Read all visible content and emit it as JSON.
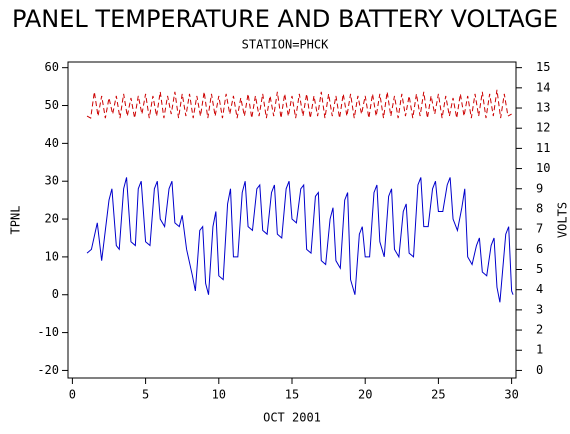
{
  "chart_data": {
    "type": "line",
    "title": "PANEL TEMPERATURE AND BATTERY VOLTAGE",
    "subtitle": "STATION=PHCK",
    "x_label": "OCT 2001",
    "y_label": "TPNL",
    "y2_label": "VOLTS",
    "xlim": [
      -0.3,
      30.3
    ],
    "xticks": [
      0,
      5,
      10,
      15,
      20,
      25,
      30
    ],
    "ylim": [
      -22,
      61.5
    ],
    "yticks": [
      -20,
      -10,
      0,
      10,
      20,
      30,
      40,
      50,
      60
    ],
    "y2lim": [
      -0.375,
      15.28
    ],
    "y2ticks": [
      0,
      1,
      2,
      3,
      4,
      5,
      6,
      7,
      8,
      9,
      10,
      11,
      12,
      13,
      14,
      15
    ],
    "series": [
      {
        "color": "#0000cc",
        "axis": "y",
        "dashed": false,
        "x": [
          1.0,
          1.3,
          1.7,
          2.0,
          2.5,
          2.7,
          3.0,
          3.2,
          3.5,
          3.7,
          4.0,
          4.3,
          4.5,
          4.7,
          5.0,
          5.3,
          5.6,
          5.8,
          6.0,
          6.3,
          6.6,
          6.8,
          7.0,
          7.3,
          7.5,
          7.8,
          8.2,
          8.4,
          8.7,
          8.9,
          9.1,
          9.3,
          9.6,
          9.8,
          10.0,
          10.3,
          10.6,
          10.8,
          11.0,
          11.3,
          11.6,
          11.8,
          12.0,
          12.3,
          12.6,
          12.8,
          13.0,
          13.3,
          13.6,
          13.8,
          14.0,
          14.3,
          14.6,
          14.8,
          15.0,
          15.3,
          15.6,
          15.8,
          16.0,
          16.3,
          16.6,
          16.8,
          17.0,
          17.3,
          17.6,
          17.8,
          18.0,
          18.3,
          18.6,
          18.8,
          19.0,
          19.3,
          19.6,
          19.8,
          20.0,
          20.3,
          20.6,
          20.8,
          21.0,
          21.3,
          21.6,
          21.8,
          22.0,
          22.3,
          22.6,
          22.8,
          23.0,
          23.3,
          23.6,
          23.8,
          24.0,
          24.3,
          24.6,
          24.8,
          25.0,
          25.3,
          25.6,
          25.8,
          26.0,
          26.3,
          26.6,
          26.8,
          27.0,
          27.3,
          27.6,
          27.8,
          28.0,
          28.3,
          28.6,
          28.8,
          29.0,
          29.2,
          29.6,
          29.8,
          30.0,
          30.1
        ],
        "values": [
          11,
          12,
          19,
          9,
          25,
          28,
          13,
          12,
          28,
          31,
          14,
          13,
          28,
          30,
          14,
          13,
          28,
          30,
          20,
          18,
          28,
          30,
          19,
          18,
          21,
          12,
          5,
          1,
          17,
          18,
          3,
          0,
          18,
          22,
          5,
          4,
          24,
          28,
          10,
          10,
          27,
          30,
          18,
          17,
          28,
          29,
          17,
          16,
          27,
          29,
          16,
          15,
          28,
          30,
          20,
          19,
          28,
          29,
          12,
          11,
          26,
          27,
          9,
          8,
          20,
          23,
          9,
          7,
          25,
          27,
          4,
          0,
          16,
          18,
          10,
          10,
          27,
          29,
          14,
          10,
          26,
          28,
          12,
          10,
          22,
          24,
          11,
          10,
          29,
          31,
          18,
          18,
          28,
          30,
          22,
          22,
          29,
          31,
          20,
          17,
          23,
          28,
          10,
          8,
          13,
          15,
          6,
          5,
          13,
          15,
          2,
          -2,
          16,
          18,
          1,
          0
        ]
      },
      {
        "color": "#cc0000",
        "axis": "y2",
        "dashed": true,
        "x": [
          1.0,
          1.25,
          1.5,
          1.75,
          2.0,
          2.25,
          2.5,
          2.75,
          3.0,
          3.25,
          3.5,
          3.75,
          4.0,
          4.25,
          4.5,
          4.75,
          5.0,
          5.25,
          5.5,
          5.75,
          6.0,
          6.25,
          6.5,
          6.75,
          7.0,
          7.25,
          7.5,
          7.75,
          8.0,
          8.25,
          8.5,
          8.75,
          9.0,
          9.25,
          9.5,
          9.75,
          10.0,
          10.25,
          10.5,
          10.75,
          11.0,
          11.25,
          11.5,
          11.75,
          12.0,
          12.25,
          12.5,
          12.75,
          13.0,
          13.25,
          13.5,
          13.75,
          14.0,
          14.25,
          14.5,
          14.75,
          15.0,
          15.25,
          15.5,
          15.75,
          16.0,
          16.25,
          16.5,
          16.75,
          17.0,
          17.25,
          17.5,
          17.75,
          18.0,
          18.25,
          18.5,
          18.75,
          19.0,
          19.25,
          19.5,
          19.75,
          20.0,
          20.25,
          20.5,
          20.75,
          21.0,
          21.25,
          21.5,
          21.75,
          22.0,
          22.25,
          22.5,
          22.75,
          23.0,
          23.25,
          23.5,
          23.75,
          24.0,
          24.25,
          24.5,
          24.75,
          25.0,
          25.25,
          25.5,
          25.75,
          26.0,
          26.25,
          26.5,
          26.75,
          27.0,
          27.25,
          27.5,
          27.75,
          28.0,
          28.25,
          28.5,
          28.75,
          29.0,
          29.25,
          29.5,
          29.75,
          30.0
        ],
        "values": [
          12.6,
          12.5,
          13.8,
          12.6,
          13.6,
          12.5,
          13.5,
          12.7,
          13.6,
          12.5,
          13.7,
          12.6,
          13.5,
          12.5,
          13.6,
          12.7,
          13.7,
          12.5,
          13.6,
          12.6,
          13.8,
          12.5,
          13.6,
          12.7,
          13.8,
          12.5,
          13.7,
          12.6,
          13.7,
          12.5,
          13.6,
          12.6,
          13.8,
          12.5,
          13.7,
          12.6,
          13.6,
          12.5,
          13.7,
          12.7,
          13.6,
          12.5,
          13.5,
          12.6,
          13.7,
          12.5,
          13.6,
          12.6,
          13.7,
          12.5,
          13.6,
          12.6,
          13.8,
          12.5,
          13.7,
          12.6,
          13.6,
          12.5,
          13.7,
          12.6,
          13.7,
          12.5,
          13.6,
          12.6,
          13.8,
          12.5,
          13.7,
          12.6,
          13.6,
          12.5,
          13.7,
          12.6,
          13.7,
          12.5,
          13.6,
          12.7,
          13.6,
          12.5,
          13.7,
          12.6,
          13.7,
          12.5,
          13.8,
          12.6,
          13.6,
          12.5,
          13.7,
          12.6,
          13.6,
          12.5,
          13.7,
          12.6,
          13.8,
          12.5,
          13.6,
          12.7,
          13.7,
          12.5,
          13.6,
          12.6,
          13.5,
          12.5,
          13.7,
          12.6,
          13.6,
          12.5,
          13.7,
          12.6,
          13.8,
          12.5,
          13.7,
          12.6,
          13.9,
          12.5,
          13.7,
          12.6,
          12.7
        ]
      }
    ]
  }
}
